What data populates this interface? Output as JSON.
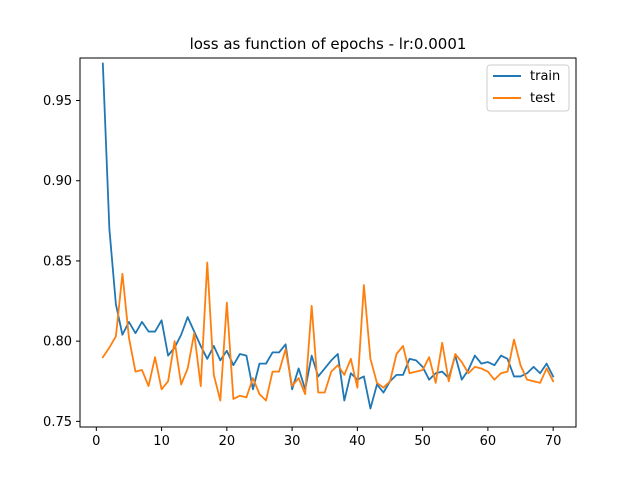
{
  "chart_data": {
    "type": "line",
    "title": "loss as function of epochs - lr:0.0001",
    "xlabel": "",
    "ylabel": "",
    "xlim": [
      -2.5,
      73.5
    ],
    "ylim": [
      0.7465,
      0.9765
    ],
    "xticks": [
      0,
      10,
      20,
      30,
      40,
      50,
      60,
      70
    ],
    "yticks": [
      0.75,
      0.8,
      0.85,
      0.9,
      0.95
    ],
    "ytick_labels": [
      "0.75",
      "0.80",
      "0.85",
      "0.90",
      "0.95"
    ],
    "grid": false,
    "legend_position": "top-right",
    "x": [
      1,
      2,
      3,
      4,
      5,
      6,
      7,
      8,
      9,
      10,
      11,
      12,
      13,
      14,
      15,
      16,
      17,
      18,
      19,
      20,
      21,
      22,
      23,
      24,
      25,
      26,
      27,
      28,
      29,
      30,
      31,
      32,
      33,
      34,
      35,
      36,
      37,
      38,
      39,
      40,
      41,
      42,
      43,
      44,
      45,
      46,
      47,
      48,
      49,
      50,
      51,
      52,
      53,
      54,
      55,
      56,
      57,
      58,
      59,
      60,
      61,
      62,
      63,
      64,
      65,
      66,
      67,
      68,
      69,
      70
    ],
    "series": [
      {
        "name": "train",
        "color": "#1f77b4",
        "values": [
          0.973,
          0.87,
          0.823,
          0.804,
          0.812,
          0.805,
          0.812,
          0.806,
          0.806,
          0.813,
          0.791,
          0.796,
          0.804,
          0.815,
          0.806,
          0.797,
          0.789,
          0.797,
          0.788,
          0.794,
          0.785,
          0.792,
          0.791,
          0.77,
          0.786,
          0.786,
          0.793,
          0.793,
          0.798,
          0.77,
          0.783,
          0.77,
          0.791,
          0.778,
          0.783,
          0.788,
          0.792,
          0.763,
          0.78,
          0.776,
          0.778,
          0.758,
          0.773,
          0.768,
          0.775,
          0.779,
          0.779,
          0.789,
          0.788,
          0.784,
          0.776,
          0.78,
          0.781,
          0.777,
          0.791,
          0.776,
          0.782,
          0.791,
          0.786,
          0.787,
          0.785,
          0.791,
          0.789,
          0.778,
          0.778,
          0.78,
          0.784,
          0.78,
          0.786,
          0.778
        ]
      },
      {
        "name": "test",
        "color": "#ff7f0e",
        "values": [
          0.79,
          0.796,
          0.803,
          0.842,
          0.802,
          0.781,
          0.782,
          0.772,
          0.79,
          0.77,
          0.775,
          0.8,
          0.773,
          0.783,
          0.805,
          0.772,
          0.849,
          0.779,
          0.763,
          0.824,
          0.764,
          0.766,
          0.765,
          0.777,
          0.767,
          0.763,
          0.781,
          0.781,
          0.795,
          0.772,
          0.777,
          0.767,
          0.822,
          0.768,
          0.768,
          0.781,
          0.785,
          0.779,
          0.789,
          0.771,
          0.835,
          0.789,
          0.774,
          0.771,
          0.775,
          0.792,
          0.797,
          0.78,
          0.781,
          0.782,
          0.79,
          0.774,
          0.799,
          0.775,
          0.792,
          0.787,
          0.78,
          0.784,
          0.783,
          0.781,
          0.776,
          0.78,
          0.781,
          0.801,
          0.785,
          0.776,
          0.775,
          0.774,
          0.783,
          0.775
        ]
      }
    ]
  }
}
